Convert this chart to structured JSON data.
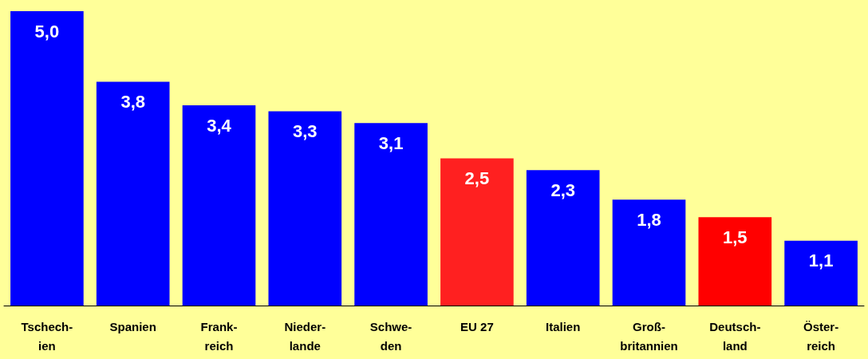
{
  "chart_data": {
    "type": "bar",
    "categories": [
      "Tschech-\nien",
      "Spanien",
      "Frank-\nreich",
      "Nieder-\nlande",
      "Schwe-\nden",
      "EU 27",
      "Italien",
      "Groß-\nbritannien",
      "Deutsch-\nland",
      "Öster-\nreich"
    ],
    "values": [
      5.0,
      3.8,
      3.4,
      3.3,
      3.1,
      2.5,
      2.3,
      1.8,
      1.5,
      1.1
    ],
    "colors": [
      "#0000ff",
      "#0000ff",
      "#0000ff",
      "#0000ff",
      "#0000ff",
      "#ff2020",
      "#0000ff",
      "#0000ff",
      "#ff0000",
      "#0000ff"
    ],
    "value_labels": [
      "5,0",
      "3,8",
      "3,4",
      "3,3",
      "3,1",
      "2,5",
      "2,3",
      "1,8",
      "1,5",
      "1,1"
    ]
  }
}
